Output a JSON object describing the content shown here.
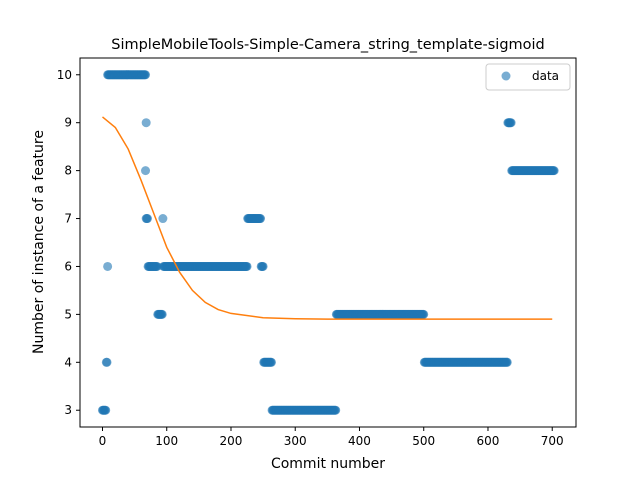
{
  "chart_data": {
    "type": "scatter",
    "title": "SimpleMobileTools-Simple-Camera_string_template-sigmoid",
    "xlabel": "Commit number",
    "ylabel": "Number of instance of a feature",
    "xlim": [
      -35,
      737
    ],
    "ylim": [
      2.65,
      10.35
    ],
    "xticks": [
      0,
      100,
      200,
      300,
      400,
      500,
      600,
      700
    ],
    "yticks": [
      3,
      4,
      5,
      6,
      7,
      8,
      9,
      10
    ],
    "grid": false,
    "legend": {
      "position": "top-right",
      "entries": [
        "data"
      ]
    },
    "colors": {
      "data": "#1f77b4",
      "fit": "#ff7f0e"
    },
    "series": [
      {
        "name": "data",
        "kind": "points",
        "segments": [
          {
            "y": 3,
            "x_start": 0,
            "x_end": 5
          },
          {
            "y": 4,
            "x_start": 6,
            "x_end": 7
          },
          {
            "y": 6,
            "x_start": 8,
            "x_end": 8
          },
          {
            "y": 10,
            "x_start": 8,
            "x_end": 67
          },
          {
            "y": 8,
            "x_start": 67,
            "x_end": 67
          },
          {
            "y": 9,
            "x_start": 68,
            "x_end": 68
          },
          {
            "y": 7,
            "x_start": 68,
            "x_end": 70
          },
          {
            "y": 6,
            "x_start": 71,
            "x_end": 85
          },
          {
            "y": 5,
            "x_start": 86,
            "x_end": 93
          },
          {
            "y": 7,
            "x_start": 94,
            "x_end": 94
          },
          {
            "y": 6,
            "x_start": 95,
            "x_end": 225
          },
          {
            "y": 7,
            "x_start": 226,
            "x_end": 246
          },
          {
            "y": 6,
            "x_start": 247,
            "x_end": 250
          },
          {
            "y": 4,
            "x_start": 251,
            "x_end": 263
          },
          {
            "y": 3,
            "x_start": 264,
            "x_end": 363
          },
          {
            "y": 5,
            "x_start": 364,
            "x_end": 500
          },
          {
            "y": 4,
            "x_start": 501,
            "x_end": 630
          },
          {
            "y": 9,
            "x_start": 631,
            "x_end": 636
          },
          {
            "y": 8,
            "x_start": 637,
            "x_end": 703
          }
        ]
      },
      {
        "kind": "line",
        "x": [
          0,
          20,
          40,
          60,
          80,
          100,
          120,
          140,
          160,
          180,
          200,
          250,
          300,
          350,
          400,
          500,
          600,
          700
        ],
        "y": [
          9.12,
          8.9,
          8.45,
          7.8,
          7.1,
          6.4,
          5.88,
          5.5,
          5.25,
          5.1,
          5.02,
          4.93,
          4.91,
          4.9,
          4.9,
          4.9,
          4.9,
          4.9
        ]
      }
    ]
  }
}
